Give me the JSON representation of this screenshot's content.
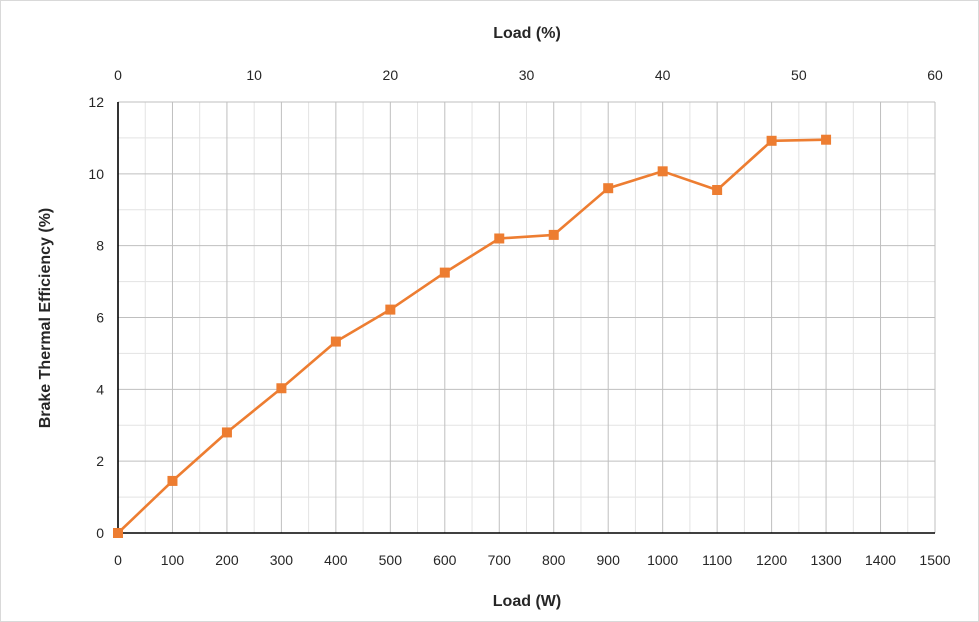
{
  "chart_data": {
    "type": "line",
    "title": "",
    "xlabel": "Load (W)",
    "x2label": "Load (%)",
    "ylabel": "Brake Thermal Efficiency (%)",
    "xlim": [
      0,
      1500
    ],
    "x2lim": [
      0,
      60
    ],
    "ylim": [
      0,
      12
    ],
    "xticks": [
      0,
      100,
      200,
      300,
      400,
      500,
      600,
      700,
      800,
      900,
      1000,
      1100,
      1200,
      1300,
      1400,
      1500
    ],
    "x2ticks": [
      0,
      10,
      20,
      30,
      40,
      50,
      60
    ],
    "yticks": [
      0,
      2,
      4,
      6,
      8,
      10,
      12
    ],
    "grid": true,
    "legend": "none",
    "series": [
      {
        "color": "#ed7d31",
        "marker": "square",
        "x": [
          0,
          100,
          200,
          300,
          400,
          500,
          600,
          700,
          800,
          900,
          1000,
          1100,
          1200,
          1300
        ],
        "y": [
          0,
          1.45,
          2.8,
          4.03,
          5.33,
          6.22,
          7.25,
          8.2,
          8.3,
          9.6,
          10.07,
          9.55,
          10.92,
          10.95
        ]
      }
    ]
  }
}
